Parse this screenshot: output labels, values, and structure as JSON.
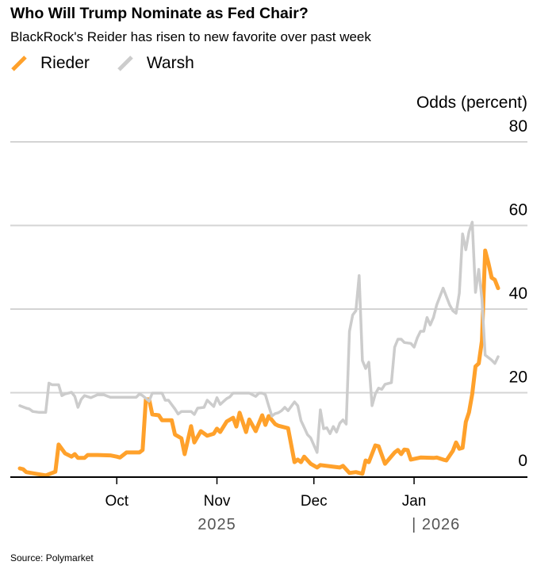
{
  "title": "Who Will Trump Nominate as Fed Chair?",
  "subtitle": "BlackRock's Reider has risen to new favorite over past week",
  "source": "Source: Polymarket",
  "colors": {
    "Rieder": "#FFA12B",
    "Warsh": "#CCCCCC"
  },
  "chart_data": {
    "type": "line",
    "title": "Who Will Trump Nominate as Fed Chair?",
    "ylabel": "Odds (percent)",
    "ylim": [
      0,
      80
    ],
    "yticks": [
      "0",
      "20",
      "40",
      "60",
      "80"
    ],
    "xlim": [
      "2025-09-01",
      "2026-01-27"
    ],
    "xticks": [
      {
        "date": "2025-10-01",
        "label": "Oct"
      },
      {
        "date": "2025-11-01",
        "label": "Nov"
      },
      {
        "date": "2025-12-01",
        "label": "Dec"
      },
      {
        "date": "2026-01-01",
        "label": "Jan"
      }
    ],
    "year_labels": [
      {
        "date": "2025-11-01",
        "label": "2025"
      },
      {
        "date": "2026-01-01",
        "label": "| 2026"
      }
    ],
    "grid": true,
    "legend": "top-left",
    "series": [
      {
        "name": "Rieder",
        "color": "#FFA12B",
        "points": [
          [
            "2025-09-01",
            1.9
          ],
          [
            "2025-09-02",
            1.7
          ],
          [
            "2025-09-03",
            1.0
          ],
          [
            "2025-09-06",
            0.6
          ],
          [
            "2025-09-09",
            0.2
          ],
          [
            "2025-09-12",
            1.1
          ],
          [
            "2025-09-13",
            7.6
          ],
          [
            "2025-09-15",
            5.5
          ],
          [
            "2025-09-17",
            4.7
          ],
          [
            "2025-09-18",
            5.3
          ],
          [
            "2025-09-19",
            4.4
          ],
          [
            "2025-09-21",
            4.4
          ],
          [
            "2025-09-22",
            5.1
          ],
          [
            "2025-09-25",
            5.1
          ],
          [
            "2025-09-29",
            5.0
          ],
          [
            "2025-10-01",
            4.7
          ],
          [
            "2025-10-02",
            4.5
          ],
          [
            "2025-10-04",
            5.7
          ],
          [
            "2025-10-08",
            5.7
          ],
          [
            "2025-10-09",
            6.3
          ],
          [
            "2025-10-10",
            18.4
          ],
          [
            "2025-10-11",
            18.4
          ],
          [
            "2025-10-12",
            14.8
          ],
          [
            "2025-10-14",
            14.6
          ],
          [
            "2025-10-15",
            13.4
          ],
          [
            "2025-10-18",
            13.4
          ],
          [
            "2025-10-19",
            10.0
          ],
          [
            "2025-10-21",
            9.1
          ],
          [
            "2025-10-22",
            5.3
          ],
          [
            "2025-10-24",
            12.0
          ],
          [
            "2025-10-25",
            8.1
          ],
          [
            "2025-10-27",
            10.8
          ],
          [
            "2025-10-29",
            9.7
          ],
          [
            "2025-10-31",
            10.2
          ],
          [
            "2025-11-01",
            11.4
          ],
          [
            "2025-11-02",
            10.6
          ],
          [
            "2025-11-04",
            13.1
          ],
          [
            "2025-11-06",
            14.0
          ],
          [
            "2025-11-07",
            11.9
          ],
          [
            "2025-11-08",
            15.2
          ],
          [
            "2025-11-10",
            10.6
          ],
          [
            "2025-11-11",
            13.6
          ],
          [
            "2025-11-13",
            10.8
          ],
          [
            "2025-11-15",
            14.6
          ],
          [
            "2025-11-16",
            12.3
          ],
          [
            "2025-11-17",
            14.4
          ],
          [
            "2025-11-19",
            12.5
          ],
          [
            "2025-11-20",
            12.1
          ],
          [
            "2025-11-23",
            11.5
          ],
          [
            "2025-11-25",
            3.4
          ],
          [
            "2025-11-26",
            4.0
          ],
          [
            "2025-11-27",
            3.4
          ],
          [
            "2025-11-28",
            4.7
          ],
          [
            "2025-11-30",
            3.0
          ],
          [
            "2025-12-02",
            2.1
          ],
          [
            "2025-12-03",
            2.7
          ],
          [
            "2025-12-07",
            2.3
          ],
          [
            "2025-12-09",
            2.1
          ],
          [
            "2025-12-10",
            2.5
          ],
          [
            "2025-12-12",
            0.8
          ],
          [
            "2025-12-14",
            1.0
          ],
          [
            "2025-12-16",
            0.6
          ],
          [
            "2025-12-17",
            3.8
          ],
          [
            "2025-12-18",
            3.4
          ],
          [
            "2025-12-20",
            7.4
          ],
          [
            "2025-12-21",
            7.2
          ],
          [
            "2025-12-23",
            3.0
          ],
          [
            "2025-12-26",
            5.7
          ],
          [
            "2025-12-27",
            6.3
          ],
          [
            "2025-12-28",
            5.3
          ],
          [
            "2025-12-29",
            6.4
          ],
          [
            "2025-12-30",
            6.3
          ],
          [
            "2025-12-31",
            4.0
          ],
          [
            "2026-01-03",
            4.5
          ],
          [
            "2026-01-07",
            4.4
          ],
          [
            "2026-01-08",
            4.5
          ],
          [
            "2026-01-10",
            4.0
          ],
          [
            "2026-01-11",
            3.8
          ],
          [
            "2026-01-13",
            6.1
          ],
          [
            "2026-01-14",
            8.1
          ],
          [
            "2026-01-15",
            6.6
          ],
          [
            "2026-01-16",
            6.8
          ],
          [
            "2026-01-17",
            13.0
          ],
          [
            "2026-01-18",
            15.3
          ],
          [
            "2026-01-19",
            19.7
          ],
          [
            "2026-01-20",
            26.3
          ],
          [
            "2026-01-21",
            27.0
          ],
          [
            "2026-01-22",
            32.4
          ],
          [
            "2026-01-23",
            54.0
          ],
          [
            "2026-01-24",
            51.0
          ],
          [
            "2026-01-25",
            47.5
          ],
          [
            "2026-01-26",
            47.0
          ],
          [
            "2026-01-27",
            45.0
          ]
        ]
      },
      {
        "name": "Warsh",
        "color": "#CCCCCC",
        "points": [
          [
            "2025-09-01",
            16.9
          ],
          [
            "2025-09-03",
            16.3
          ],
          [
            "2025-09-04",
            16.1
          ],
          [
            "2025-09-05",
            15.5
          ],
          [
            "2025-09-07",
            15.3
          ],
          [
            "2025-09-09",
            15.3
          ],
          [
            "2025-09-10",
            22.3
          ],
          [
            "2025-09-11",
            21.9
          ],
          [
            "2025-09-13",
            21.9
          ],
          [
            "2025-09-14",
            19.3
          ],
          [
            "2025-09-15",
            19.7
          ],
          [
            "2025-09-17",
            20.1
          ],
          [
            "2025-09-18",
            19.1
          ],
          [
            "2025-09-19",
            16.5
          ],
          [
            "2025-09-20",
            18.4
          ],
          [
            "2025-09-21",
            19.3
          ],
          [
            "2025-09-23",
            18.8
          ],
          [
            "2025-09-25",
            19.5
          ],
          [
            "2025-09-27",
            19.5
          ],
          [
            "2025-09-29",
            18.9
          ],
          [
            "2025-10-03",
            18.9
          ],
          [
            "2025-10-07",
            18.9
          ],
          [
            "2025-10-08",
            19.7
          ],
          [
            "2025-10-09",
            19.3
          ],
          [
            "2025-10-11",
            18.0
          ],
          [
            "2025-10-12",
            19.9
          ],
          [
            "2025-10-15",
            19.9
          ],
          [
            "2025-10-16",
            18.2
          ],
          [
            "2025-10-17",
            18.2
          ],
          [
            "2025-10-19",
            16.1
          ],
          [
            "2025-10-20",
            14.9
          ],
          [
            "2025-10-21",
            15.5
          ],
          [
            "2025-10-24",
            15.5
          ],
          [
            "2025-10-25",
            14.8
          ],
          [
            "2025-10-26",
            16.3
          ],
          [
            "2025-10-28",
            16.5
          ],
          [
            "2025-10-29",
            18.2
          ],
          [
            "2025-10-31",
            16.7
          ],
          [
            "2025-11-01",
            18.8
          ],
          [
            "2025-11-02",
            17.2
          ],
          [
            "2025-11-04",
            18.6
          ],
          [
            "2025-11-05",
            19.0
          ],
          [
            "2025-11-06",
            19.9
          ],
          [
            "2025-11-09",
            19.9
          ],
          [
            "2025-11-11",
            19.9
          ],
          [
            "2025-11-13",
            19.1
          ],
          [
            "2025-11-14",
            19.9
          ],
          [
            "2025-11-15",
            19.9
          ],
          [
            "2025-11-16",
            19.5
          ],
          [
            "2025-11-17",
            16.9
          ],
          [
            "2025-11-18",
            14.4
          ],
          [
            "2025-11-19",
            15.0
          ],
          [
            "2025-11-20",
            15.2
          ],
          [
            "2025-11-21",
            15.7
          ],
          [
            "2025-11-22",
            16.5
          ],
          [
            "2025-11-23",
            15.7
          ],
          [
            "2025-11-25",
            17.8
          ],
          [
            "2025-11-26",
            16.9
          ],
          [
            "2025-11-27",
            13.3
          ],
          [
            "2025-11-28",
            11.7
          ],
          [
            "2025-11-29",
            10.0
          ],
          [
            "2025-11-30",
            9.2
          ],
          [
            "2025-12-02",
            5.7
          ],
          [
            "2025-12-03",
            15.9
          ],
          [
            "2025-12-04",
            11.4
          ],
          [
            "2025-12-05",
            11.6
          ],
          [
            "2025-12-06",
            10.2
          ],
          [
            "2025-12-07",
            11.9
          ],
          [
            "2025-12-08",
            10.6
          ],
          [
            "2025-12-09",
            12.7
          ],
          [
            "2025-12-10",
            13.5
          ],
          [
            "2025-12-11",
            12.5
          ],
          [
            "2025-12-12",
            34.7
          ],
          [
            "2025-12-13",
            38.6
          ],
          [
            "2025-12-14",
            39.6
          ],
          [
            "2025-12-15",
            48.0
          ],
          [
            "2025-12-16",
            27.7
          ],
          [
            "2025-12-17",
            25.8
          ],
          [
            "2025-12-18",
            27.3
          ],
          [
            "2025-12-19",
            16.9
          ],
          [
            "2025-12-20",
            19.7
          ],
          [
            "2025-12-21",
            21.1
          ],
          [
            "2025-12-22",
            20.8
          ],
          [
            "2025-12-23",
            22.0
          ],
          [
            "2025-12-25",
            22.4
          ],
          [
            "2025-12-26",
            30.9
          ],
          [
            "2025-12-27",
            32.8
          ],
          [
            "2025-12-28",
            32.8
          ],
          [
            "2025-12-29",
            32.0
          ],
          [
            "2025-12-31",
            31.8
          ],
          [
            "2026-01-01",
            30.9
          ],
          [
            "2026-01-02",
            33.1
          ],
          [
            "2026-01-03",
            34.7
          ],
          [
            "2026-01-04",
            34.7
          ],
          [
            "2026-01-05",
            38.0
          ],
          [
            "2026-01-06",
            36.2
          ],
          [
            "2026-01-07",
            38.0
          ],
          [
            "2026-01-08",
            41.0
          ],
          [
            "2026-01-10",
            45.0
          ],
          [
            "2026-01-12",
            41.0
          ],
          [
            "2026-01-13",
            39.6
          ],
          [
            "2026-01-14",
            39.0
          ],
          [
            "2026-01-15",
            43.8
          ],
          [
            "2026-01-16",
            58.0
          ],
          [
            "2026-01-17",
            54.2
          ],
          [
            "2026-01-18",
            58.5
          ],
          [
            "2026-01-19",
            60.8
          ],
          [
            "2026-01-20",
            44.0
          ],
          [
            "2026-01-21",
            49.5
          ],
          [
            "2026-01-22",
            42.4
          ],
          [
            "2026-01-23",
            29.0
          ],
          [
            "2026-01-25",
            27.8
          ],
          [
            "2026-01-26",
            27.0
          ],
          [
            "2026-01-27",
            28.6
          ]
        ]
      }
    ]
  }
}
